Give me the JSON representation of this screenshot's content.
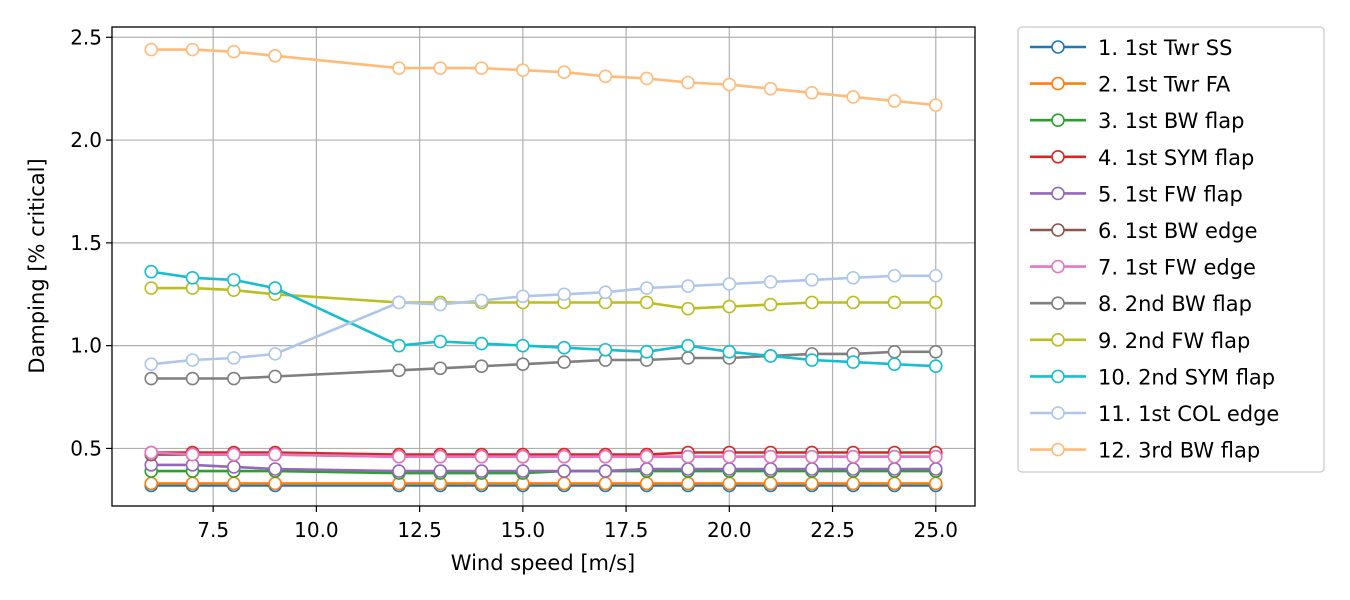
{
  "chart_data": {
    "type": "line",
    "xlabel": "Wind speed [m/s]",
    "ylabel": "Damping [% critical]",
    "xlim": [
      5.05,
      25.95
    ],
    "ylim": [
      0.22,
      2.55
    ],
    "xticks": [
      7.5,
      10.0,
      12.5,
      15.0,
      17.5,
      20.0,
      22.5,
      25.0
    ],
    "xtick_labels": [
      "7.5",
      "10.0",
      "12.5",
      "15.0",
      "17.5",
      "20.0",
      "22.5",
      "25.0"
    ],
    "yticks": [
      0.5,
      1.0,
      1.5,
      2.0,
      2.5
    ],
    "ytick_labels": [
      "0.5",
      "1.0",
      "1.5",
      "2.0",
      "2.5"
    ],
    "grid": true,
    "legend_position": "outside-right-top",
    "marker": "open-circle",
    "x": [
      6,
      7,
      8,
      9,
      12,
      13,
      14,
      15,
      16,
      17,
      18,
      19,
      20,
      21,
      22,
      23,
      24,
      25
    ],
    "series": [
      {
        "name": "1. 1st Twr SS",
        "color": "#1f77b4",
        "values": [
          0.32,
          0.32,
          0.32,
          0.32,
          0.32,
          0.32,
          0.32,
          0.32,
          0.32,
          0.32,
          0.32,
          0.32,
          0.32,
          0.32,
          0.32,
          0.32,
          0.32,
          0.32
        ]
      },
      {
        "name": "2. 1st Twr FA",
        "color": "#ff7f0e",
        "values": [
          0.33,
          0.33,
          0.33,
          0.33,
          0.33,
          0.33,
          0.33,
          0.33,
          0.33,
          0.33,
          0.33,
          0.33,
          0.33,
          0.33,
          0.33,
          0.33,
          0.33,
          0.33
        ]
      },
      {
        "name": "3. 1st BW flap",
        "color": "#2ca02c",
        "values": [
          0.39,
          0.39,
          0.39,
          0.39,
          0.38,
          0.38,
          0.38,
          0.38,
          0.39,
          0.39,
          0.39,
          0.39,
          0.39,
          0.39,
          0.39,
          0.39,
          0.39,
          0.39
        ]
      },
      {
        "name": "4. 1st SYM flap",
        "color": "#d62728",
        "values": [
          0.48,
          0.48,
          0.48,
          0.48,
          0.47,
          0.47,
          0.47,
          0.47,
          0.47,
          0.47,
          0.47,
          0.48,
          0.48,
          0.48,
          0.48,
          0.48,
          0.48,
          0.48
        ]
      },
      {
        "name": "5. 1st FW flap",
        "color": "#9467bd",
        "values": [
          0.42,
          0.42,
          0.41,
          0.4,
          0.39,
          0.39,
          0.39,
          0.39,
          0.39,
          0.39,
          0.4,
          0.4,
          0.4,
          0.4,
          0.4,
          0.4,
          0.4,
          0.4
        ]
      },
      {
        "name": "6. 1st BW edge",
        "color": "#8c564b",
        "values": [
          0.47,
          0.47,
          0.47,
          0.47,
          0.46,
          0.46,
          0.46,
          0.46,
          0.46,
          0.46,
          0.46,
          0.46,
          0.46,
          0.46,
          0.46,
          0.46,
          0.46,
          0.46
        ]
      },
      {
        "name": "7. 1st FW edge",
        "color": "#e377c2",
        "values": [
          0.48,
          0.47,
          0.47,
          0.47,
          0.46,
          0.46,
          0.46,
          0.46,
          0.46,
          0.46,
          0.46,
          0.46,
          0.46,
          0.46,
          0.46,
          0.46,
          0.46,
          0.46
        ]
      },
      {
        "name": "8. 2nd BW flap",
        "color": "#7f7f7f",
        "values": [
          0.84,
          0.84,
          0.84,
          0.85,
          0.88,
          0.89,
          0.9,
          0.91,
          0.92,
          0.93,
          0.93,
          0.94,
          0.94,
          0.95,
          0.96,
          0.96,
          0.97,
          0.97
        ]
      },
      {
        "name": "9. 2nd FW flap",
        "color": "#bcbd22",
        "values": [
          1.28,
          1.28,
          1.27,
          1.25,
          1.21,
          1.21,
          1.21,
          1.21,
          1.21,
          1.21,
          1.21,
          1.18,
          1.19,
          1.2,
          1.21,
          1.21,
          1.21,
          1.21
        ]
      },
      {
        "name": "10. 2nd SYM flap",
        "color": "#17becf",
        "values": [
          1.36,
          1.33,
          1.32,
          1.28,
          1.0,
          1.02,
          1.01,
          1.0,
          0.99,
          0.98,
          0.97,
          1.0,
          0.97,
          0.95,
          0.93,
          0.92,
          0.91,
          0.9
        ]
      },
      {
        "name": "11. 1st COL edge",
        "color": "#aec7e8",
        "values": [
          0.91,
          0.93,
          0.94,
          0.96,
          1.21,
          1.2,
          1.22,
          1.24,
          1.25,
          1.26,
          1.28,
          1.29,
          1.3,
          1.31,
          1.32,
          1.33,
          1.34,
          1.34
        ]
      },
      {
        "name": "12. 3rd BW flap",
        "color": "#ffbb78",
        "values": [
          2.44,
          2.44,
          2.43,
          2.41,
          2.35,
          2.35,
          2.35,
          2.34,
          2.33,
          2.31,
          2.3,
          2.28,
          2.27,
          2.25,
          2.23,
          2.21,
          2.19,
          2.17
        ]
      }
    ]
  }
}
